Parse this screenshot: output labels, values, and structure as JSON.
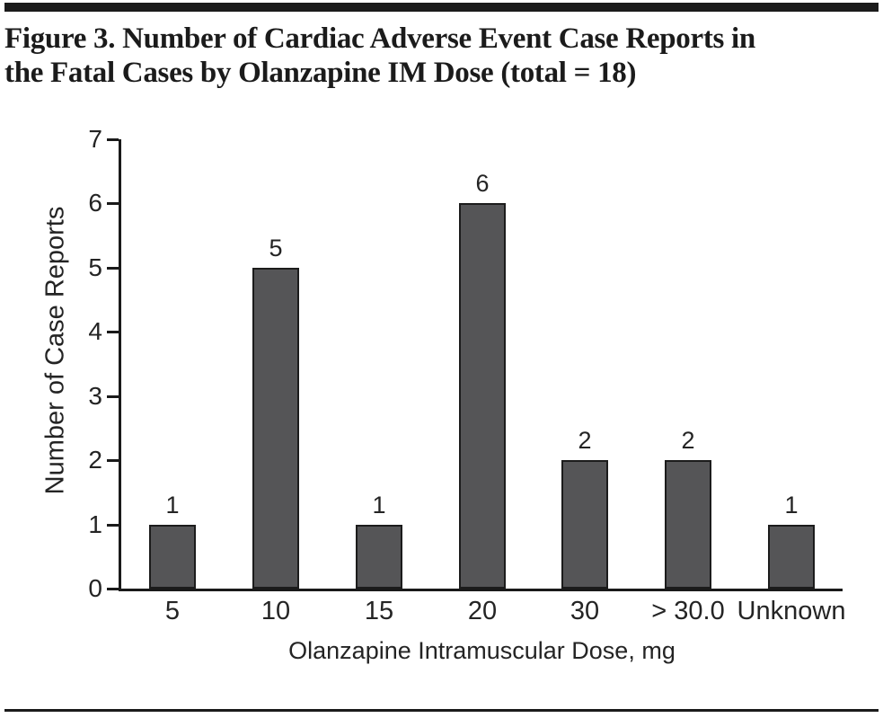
{
  "figure": {
    "title_line1": "Figure 3. Number of Cardiac Adverse Event Case Reports in",
    "title_line2": "the Fatal Cases by Olanzapine IM Dose (total = 18)"
  },
  "chart_data": {
    "type": "bar",
    "title": "Figure 3. Number of Cardiac Adverse Event Case Reports in the Fatal Cases by Olanzapine IM Dose (total = 18)",
    "categories": [
      "5",
      "10",
      "15",
      "20",
      "30",
      "> 30.0",
      "Unknown"
    ],
    "values": [
      1,
      5,
      1,
      6,
      2,
      2,
      1
    ],
    "value_labels": [
      "1",
      "5",
      "1",
      "6",
      "2",
      "2",
      "1"
    ],
    "total": 18,
    "xlabel": "Olanzapine Intramuscular Dose, mg",
    "ylabel": "Number of Case Reports",
    "ylim": [
      0,
      7
    ],
    "yticks": [
      0,
      1,
      2,
      3,
      4,
      5,
      6,
      7
    ],
    "grid": false,
    "legend": false,
    "bar_color": "#555557",
    "bar_border_color": "#1c1c1c",
    "axis_color": "#1a1a1a",
    "text_color": "#242424"
  }
}
